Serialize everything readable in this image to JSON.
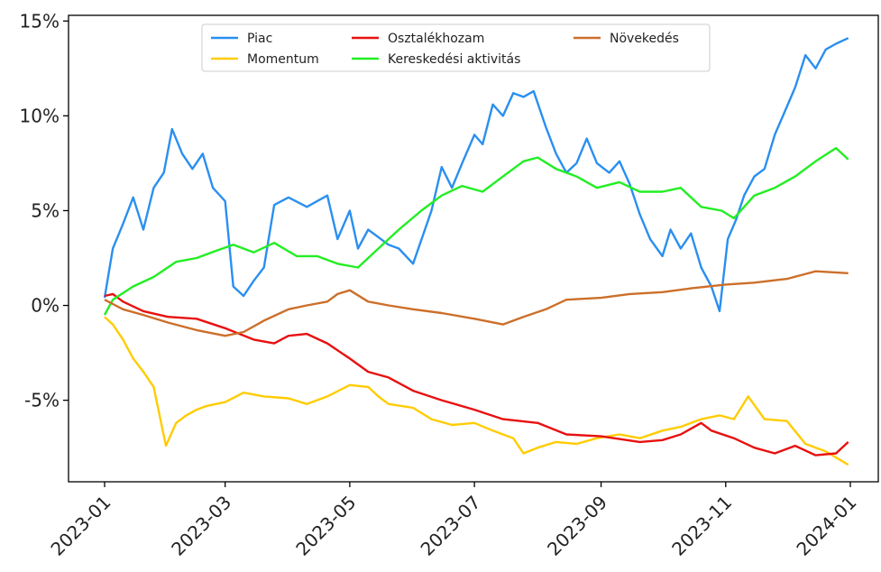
{
  "chart_data": {
    "type": "line",
    "title": "",
    "xlabel": "",
    "ylabel": "",
    "x_axis": {
      "kind": "date",
      "range": [
        "2023-01-01",
        "2024-01-01"
      ],
      "ticks": [
        {
          "date": "2023-01-01",
          "label": "2023-01"
        },
        {
          "date": "2023-03-01",
          "label": "2023-03"
        },
        {
          "date": "2023-05-01",
          "label": "2023-05"
        },
        {
          "date": "2023-07-01",
          "label": "2023-07"
        },
        {
          "date": "2023-09-01",
          "label": "2023-09"
        },
        {
          "date": "2023-11-01",
          "label": "2023-11"
        },
        {
          "date": "2024-01-01",
          "label": "2024-01"
        }
      ]
    },
    "y_axis": {
      "unit": "%",
      "range": [
        -9.3,
        15.3
      ],
      "ticks": [
        {
          "value": -5,
          "label": "-5%"
        },
        {
          "value": 0,
          "label": "0%"
        },
        {
          "value": 5,
          "label": "5%"
        },
        {
          "value": 10,
          "label": "10%"
        },
        {
          "value": 15,
          "label": "15%"
        }
      ]
    },
    "grid": false,
    "legend": {
      "placement": "top-center",
      "columns": 3
    },
    "series": [
      {
        "name": "Piac",
        "color": "#2a8ff0",
        "points": [
          [
            "2023-01-01",
            0.4
          ],
          [
            "2023-01-05",
            3.0
          ],
          [
            "2023-01-10",
            4.3
          ],
          [
            "2023-01-15",
            5.7
          ],
          [
            "2023-01-20",
            4.0
          ],
          [
            "2023-01-25",
            6.2
          ],
          [
            "2023-01-30",
            7.0
          ],
          [
            "2023-02-03",
            9.3
          ],
          [
            "2023-02-08",
            8.0
          ],
          [
            "2023-02-13",
            7.2
          ],
          [
            "2023-02-18",
            8.0
          ],
          [
            "2023-02-23",
            6.2
          ],
          [
            "2023-03-01",
            5.5
          ],
          [
            "2023-03-05",
            1.0
          ],
          [
            "2023-03-10",
            0.5
          ],
          [
            "2023-03-15",
            1.3
          ],
          [
            "2023-03-20",
            2.0
          ],
          [
            "2023-03-25",
            5.3
          ],
          [
            "2023-04-01",
            5.7
          ],
          [
            "2023-04-10",
            5.2
          ],
          [
            "2023-04-20",
            5.8
          ],
          [
            "2023-04-25",
            3.5
          ],
          [
            "2023-05-01",
            5.0
          ],
          [
            "2023-05-05",
            3.0
          ],
          [
            "2023-05-10",
            4.0
          ],
          [
            "2023-05-20",
            3.2
          ],
          [
            "2023-05-25",
            3.0
          ],
          [
            "2023-06-01",
            2.2
          ],
          [
            "2023-06-10",
            5.0
          ],
          [
            "2023-06-15",
            7.3
          ],
          [
            "2023-06-20",
            6.2
          ],
          [
            "2023-06-25",
            7.5
          ],
          [
            "2023-07-01",
            9.0
          ],
          [
            "2023-07-05",
            8.5
          ],
          [
            "2023-07-10",
            10.6
          ],
          [
            "2023-07-15",
            10.0
          ],
          [
            "2023-07-20",
            11.2
          ],
          [
            "2023-07-25",
            11.0
          ],
          [
            "2023-07-30",
            11.3
          ],
          [
            "2023-08-05",
            9.4
          ],
          [
            "2023-08-10",
            8.0
          ],
          [
            "2023-08-15",
            7.0
          ],
          [
            "2023-08-20",
            7.5
          ],
          [
            "2023-08-25",
            8.8
          ],
          [
            "2023-08-30",
            7.5
          ],
          [
            "2023-09-05",
            7.0
          ],
          [
            "2023-09-10",
            7.6
          ],
          [
            "2023-09-15",
            6.4
          ],
          [
            "2023-09-20",
            4.8
          ],
          [
            "2023-09-25",
            3.5
          ],
          [
            "2023-10-01",
            2.6
          ],
          [
            "2023-10-05",
            4.0
          ],
          [
            "2023-10-10",
            3.0
          ],
          [
            "2023-10-15",
            3.8
          ],
          [
            "2023-10-20",
            2.0
          ],
          [
            "2023-10-25",
            1.0
          ],
          [
            "2023-10-29",
            -0.3
          ],
          [
            "2023-11-02",
            3.5
          ],
          [
            "2023-11-06",
            4.5
          ],
          [
            "2023-11-10",
            5.8
          ],
          [
            "2023-11-15",
            6.8
          ],
          [
            "2023-11-20",
            7.2
          ],
          [
            "2023-11-25",
            9.0
          ],
          [
            "2023-12-01",
            10.5
          ],
          [
            "2023-12-05",
            11.5
          ],
          [
            "2023-12-10",
            13.2
          ],
          [
            "2023-12-15",
            12.5
          ],
          [
            "2023-12-20",
            13.5
          ],
          [
            "2023-12-25",
            13.8
          ],
          [
            "2023-12-31",
            14.1
          ]
        ]
      },
      {
        "name": "Momentum",
        "color": "#ffcc00",
        "points": [
          [
            "2023-01-01",
            -0.6
          ],
          [
            "2023-01-05",
            -1.0
          ],
          [
            "2023-01-10",
            -1.8
          ],
          [
            "2023-01-15",
            -2.8
          ],
          [
            "2023-01-20",
            -3.5
          ],
          [
            "2023-01-25",
            -4.3
          ],
          [
            "2023-01-31",
            -7.4
          ],
          [
            "2023-02-05",
            -6.2
          ],
          [
            "2023-02-10",
            -5.8
          ],
          [
            "2023-02-15",
            -5.5
          ],
          [
            "2023-02-20",
            -5.3
          ],
          [
            "2023-03-01",
            -5.1
          ],
          [
            "2023-03-10",
            -4.6
          ],
          [
            "2023-03-20",
            -4.8
          ],
          [
            "2023-04-01",
            -4.9
          ],
          [
            "2023-04-10",
            -5.2
          ],
          [
            "2023-04-20",
            -4.8
          ],
          [
            "2023-05-01",
            -4.2
          ],
          [
            "2023-05-10",
            -4.3
          ],
          [
            "2023-05-15",
            -4.8
          ],
          [
            "2023-05-20",
            -5.2
          ],
          [
            "2023-06-01",
            -5.4
          ],
          [
            "2023-06-10",
            -6.0
          ],
          [
            "2023-06-20",
            -6.3
          ],
          [
            "2023-07-01",
            -6.2
          ],
          [
            "2023-07-10",
            -6.6
          ],
          [
            "2023-07-20",
            -7.0
          ],
          [
            "2023-07-25",
            -7.8
          ],
          [
            "2023-08-01",
            -7.5
          ],
          [
            "2023-08-10",
            -7.2
          ],
          [
            "2023-08-20",
            -7.3
          ],
          [
            "2023-08-30",
            -7.0
          ],
          [
            "2023-09-10",
            -6.8
          ],
          [
            "2023-09-20",
            -7.0
          ],
          [
            "2023-10-01",
            -6.6
          ],
          [
            "2023-10-10",
            -6.4
          ],
          [
            "2023-10-20",
            -6.0
          ],
          [
            "2023-10-29",
            -5.8
          ],
          [
            "2023-11-05",
            -6.0
          ],
          [
            "2023-11-12",
            -4.8
          ],
          [
            "2023-11-20",
            -6.0
          ],
          [
            "2023-12-01",
            -6.1
          ],
          [
            "2023-12-10",
            -7.3
          ],
          [
            "2023-12-20",
            -7.7
          ],
          [
            "2023-12-31",
            -8.4
          ]
        ]
      },
      {
        "name": "Osztalékhozam",
        "color": "#e81010",
        "points": [
          [
            "2023-01-01",
            0.5
          ],
          [
            "2023-01-05",
            0.6
          ],
          [
            "2023-01-10",
            0.2
          ],
          [
            "2023-01-20",
            -0.3
          ],
          [
            "2023-02-01",
            -0.6
          ],
          [
            "2023-02-15",
            -0.7
          ],
          [
            "2023-03-01",
            -1.2
          ],
          [
            "2023-03-15",
            -1.8
          ],
          [
            "2023-03-25",
            -2.0
          ],
          [
            "2023-04-01",
            -1.6
          ],
          [
            "2023-04-10",
            -1.5
          ],
          [
            "2023-04-20",
            -2.0
          ],
          [
            "2023-05-01",
            -2.8
          ],
          [
            "2023-05-10",
            -3.5
          ],
          [
            "2023-05-20",
            -3.8
          ],
          [
            "2023-06-01",
            -4.5
          ],
          [
            "2023-06-15",
            -5.0
          ],
          [
            "2023-07-01",
            -5.5
          ],
          [
            "2023-07-15",
            -6.0
          ],
          [
            "2023-08-01",
            -6.2
          ],
          [
            "2023-08-15",
            -6.8
          ],
          [
            "2023-09-01",
            -6.9
          ],
          [
            "2023-09-20",
            -7.2
          ],
          [
            "2023-10-01",
            -7.1
          ],
          [
            "2023-10-10",
            -6.8
          ],
          [
            "2023-10-20",
            -6.2
          ],
          [
            "2023-10-25",
            -6.6
          ],
          [
            "2023-11-05",
            -7.0
          ],
          [
            "2023-11-15",
            -7.5
          ],
          [
            "2023-11-25",
            -7.8
          ],
          [
            "2023-12-05",
            -7.4
          ],
          [
            "2023-12-15",
            -7.9
          ],
          [
            "2023-12-25",
            -7.8
          ],
          [
            "2023-12-31",
            -7.2
          ]
        ]
      },
      {
        "name": "Kereskedési aktivitás",
        "color": "#22ee22",
        "points": [
          [
            "2023-01-01",
            -0.5
          ],
          [
            "2023-01-05",
            0.3
          ],
          [
            "2023-01-15",
            1.0
          ],
          [
            "2023-01-25",
            1.5
          ],
          [
            "2023-02-05",
            2.3
          ],
          [
            "2023-02-15",
            2.5
          ],
          [
            "2023-02-25",
            2.9
          ],
          [
            "2023-03-05",
            3.2
          ],
          [
            "2023-03-15",
            2.8
          ],
          [
            "2023-03-25",
            3.3
          ],
          [
            "2023-04-05",
            2.6
          ],
          [
            "2023-04-15",
            2.6
          ],
          [
            "2023-04-25",
            2.2
          ],
          [
            "2023-05-05",
            2.0
          ],
          [
            "2023-05-15",
            3.0
          ],
          [
            "2023-05-25",
            4.0
          ],
          [
            "2023-06-05",
            5.0
          ],
          [
            "2023-06-15",
            5.8
          ],
          [
            "2023-06-25",
            6.3
          ],
          [
            "2023-07-05",
            6.0
          ],
          [
            "2023-07-15",
            6.8
          ],
          [
            "2023-07-25",
            7.6
          ],
          [
            "2023-08-01",
            7.8
          ],
          [
            "2023-08-10",
            7.2
          ],
          [
            "2023-08-20",
            6.8
          ],
          [
            "2023-08-30",
            6.2
          ],
          [
            "2023-09-10",
            6.5
          ],
          [
            "2023-09-20",
            6.0
          ],
          [
            "2023-10-01",
            6.0
          ],
          [
            "2023-10-10",
            6.2
          ],
          [
            "2023-10-20",
            5.2
          ],
          [
            "2023-10-30",
            5.0
          ],
          [
            "2023-11-05",
            4.6
          ],
          [
            "2023-11-15",
            5.8
          ],
          [
            "2023-11-25",
            6.2
          ],
          [
            "2023-12-05",
            6.8
          ],
          [
            "2023-12-15",
            7.6
          ],
          [
            "2023-12-25",
            8.3
          ],
          [
            "2023-12-31",
            7.7
          ]
        ]
      },
      {
        "name": "Növekedés",
        "color": "#cc6f2a",
        "points": [
          [
            "2023-01-01",
            0.3
          ],
          [
            "2023-01-10",
            -0.2
          ],
          [
            "2023-01-20",
            -0.5
          ],
          [
            "2023-02-01",
            -0.9
          ],
          [
            "2023-02-15",
            -1.3
          ],
          [
            "2023-03-01",
            -1.6
          ],
          [
            "2023-03-10",
            -1.4
          ],
          [
            "2023-03-20",
            -0.8
          ],
          [
            "2023-04-01",
            -0.2
          ],
          [
            "2023-04-10",
            0.0
          ],
          [
            "2023-04-20",
            0.2
          ],
          [
            "2023-04-25",
            0.6
          ],
          [
            "2023-05-01",
            0.8
          ],
          [
            "2023-05-10",
            0.2
          ],
          [
            "2023-05-20",
            0.0
          ],
          [
            "2023-06-01",
            -0.2
          ],
          [
            "2023-06-15",
            -0.4
          ],
          [
            "2023-07-01",
            -0.7
          ],
          [
            "2023-07-15",
            -1.0
          ],
          [
            "2023-07-25",
            -0.6
          ],
          [
            "2023-08-05",
            -0.2
          ],
          [
            "2023-08-15",
            0.3
          ],
          [
            "2023-09-01",
            0.4
          ],
          [
            "2023-09-15",
            0.6
          ],
          [
            "2023-10-01",
            0.7
          ],
          [
            "2023-10-15",
            0.9
          ],
          [
            "2023-11-01",
            1.1
          ],
          [
            "2023-11-15",
            1.2
          ],
          [
            "2023-12-01",
            1.4
          ],
          [
            "2023-12-15",
            1.8
          ],
          [
            "2023-12-31",
            1.7
          ]
        ]
      }
    ]
  }
}
